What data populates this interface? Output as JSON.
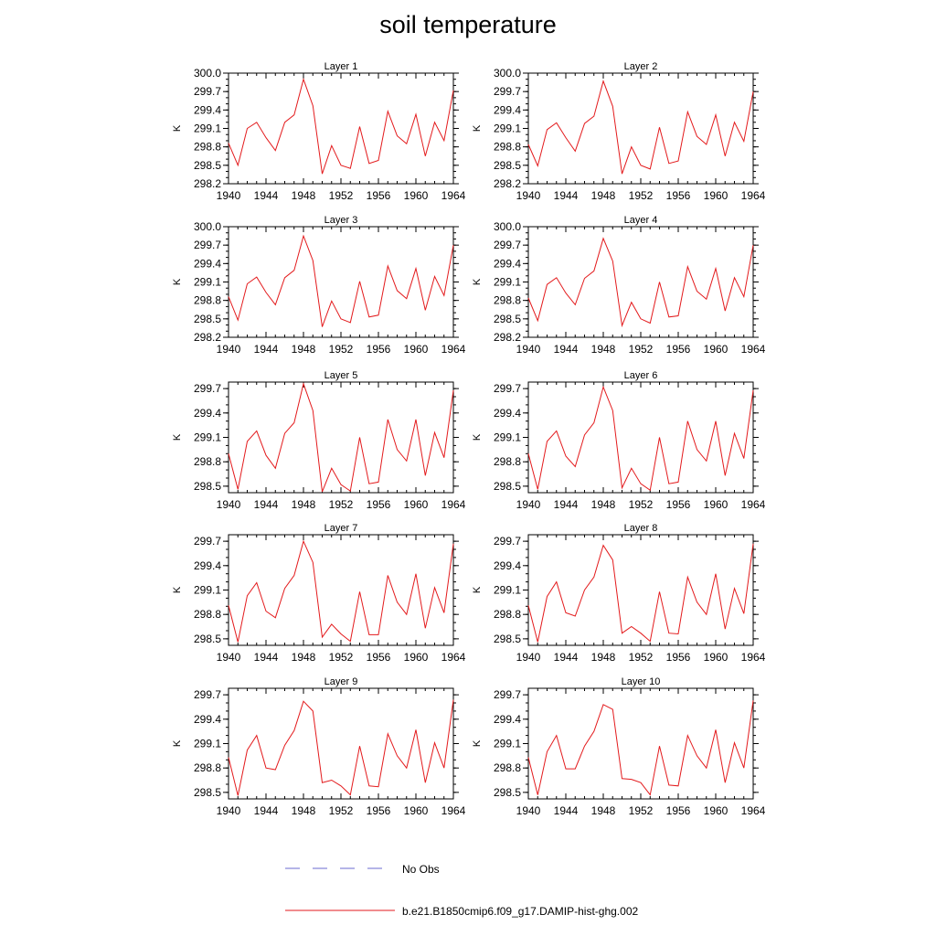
{
  "title": "soil temperature",
  "colors": {
    "obs": "#6b6bd0",
    "model": "#e31a1c"
  },
  "legend": {
    "obs_label": "No Obs",
    "model_label": "b.e21.B1850cmip6.f09_g17.DAMIP-hist-ghg.002"
  },
  "chart_data": [
    {
      "type": "line",
      "title": "Layer 1",
      "ylabel": "K",
      "xlim": [
        1940,
        1964
      ],
      "ylim": [
        298.2,
        300.0
      ],
      "xticks": [
        "1940",
        "1944",
        "1948",
        "1952",
        "1956",
        "1960",
        "1964"
      ],
      "yticks": [
        "298.2",
        "298.5",
        "298.8",
        "299.1",
        "299.4",
        "299.7",
        "300.0"
      ],
      "series": [
        {
          "name": "b.e21.B1850cmip6.f09_g17.DAMIP-hist-ghg.002",
          "x": [
            1940,
            1941,
            1942,
            1943,
            1944,
            1945,
            1946,
            1947,
            1948,
            1949,
            1950,
            1951,
            1952,
            1953,
            1954,
            1955,
            1956,
            1957,
            1958,
            1959,
            1960,
            1961,
            1962,
            1963,
            1964
          ],
          "values": [
            298.86,
            298.5,
            299.1,
            299.2,
            298.95,
            298.74,
            299.2,
            299.32,
            299.9,
            299.47,
            298.36,
            298.82,
            298.5,
            298.45,
            299.13,
            298.53,
            298.58,
            299.38,
            298.98,
            298.85,
            299.33,
            298.65,
            299.2,
            298.9,
            299.72
          ]
        }
      ]
    },
    {
      "type": "line",
      "title": "Layer 2",
      "ylabel": "K",
      "xlim": [
        1940,
        1964
      ],
      "ylim": [
        298.2,
        300.0
      ],
      "xticks": [
        "1940",
        "1944",
        "1948",
        "1952",
        "1956",
        "1960",
        "1964"
      ],
      "yticks": [
        "298.2",
        "298.5",
        "298.8",
        "299.1",
        "299.4",
        "299.7",
        "300.0"
      ],
      "series": [
        {
          "name": "b.e21.B1850cmip6.f09_g17.DAMIP-hist-ghg.002",
          "x": [
            1940,
            1941,
            1942,
            1943,
            1944,
            1945,
            1946,
            1947,
            1948,
            1949,
            1950,
            1951,
            1952,
            1953,
            1954,
            1955,
            1956,
            1957,
            1958,
            1959,
            1960,
            1961,
            1962,
            1963,
            1964
          ],
          "values": [
            298.84,
            298.49,
            299.08,
            299.19,
            298.95,
            298.73,
            299.18,
            299.3,
            299.87,
            299.46,
            298.36,
            298.8,
            298.5,
            298.44,
            299.12,
            298.53,
            298.57,
            299.37,
            298.97,
            298.84,
            299.32,
            298.65,
            299.2,
            298.89,
            299.7
          ]
        }
      ]
    },
    {
      "type": "line",
      "title": "Layer 3",
      "ylabel": "K",
      "xlim": [
        1940,
        1964
      ],
      "ylim": [
        298.2,
        300.0
      ],
      "xticks": [
        "1940",
        "1944",
        "1948",
        "1952",
        "1956",
        "1960",
        "1964"
      ],
      "yticks": [
        "298.2",
        "298.5",
        "298.8",
        "299.1",
        "299.4",
        "299.7",
        "300.0"
      ],
      "series": [
        {
          "name": "b.e21.B1850cmip6.f09_g17.DAMIP-hist-ghg.002",
          "x": [
            1940,
            1941,
            1942,
            1943,
            1944,
            1945,
            1946,
            1947,
            1948,
            1949,
            1950,
            1951,
            1952,
            1953,
            1954,
            1955,
            1956,
            1957,
            1958,
            1959,
            1960,
            1961,
            1962,
            1963,
            1964
          ],
          "values": [
            298.86,
            298.48,
            299.07,
            299.18,
            298.93,
            298.73,
            299.17,
            299.29,
            299.85,
            299.45,
            298.37,
            298.79,
            298.5,
            298.44,
            299.11,
            298.53,
            298.56,
            299.36,
            298.96,
            298.83,
            299.32,
            298.64,
            299.19,
            298.88,
            299.7
          ]
        }
      ]
    },
    {
      "type": "line",
      "title": "Layer 4",
      "ylabel": "K",
      "xlim": [
        1940,
        1964
      ],
      "ylim": [
        298.2,
        300.0
      ],
      "xticks": [
        "1940",
        "1944",
        "1948",
        "1952",
        "1956",
        "1960",
        "1964"
      ],
      "yticks": [
        "298.2",
        "298.5",
        "298.8",
        "299.1",
        "299.4",
        "299.7",
        "300.0"
      ],
      "series": [
        {
          "name": "b.e21.B1850cmip6.f09_g17.DAMIP-hist-ghg.002",
          "x": [
            1940,
            1941,
            1942,
            1943,
            1944,
            1945,
            1946,
            1947,
            1948,
            1949,
            1950,
            1951,
            1952,
            1953,
            1954,
            1955,
            1956,
            1957,
            1958,
            1959,
            1960,
            1961,
            1962,
            1963,
            1964
          ],
          "values": [
            298.84,
            298.47,
            299.06,
            299.17,
            298.92,
            298.73,
            299.16,
            299.28,
            299.81,
            299.44,
            298.39,
            298.77,
            298.5,
            298.43,
            299.1,
            298.53,
            298.55,
            299.35,
            298.95,
            298.82,
            299.32,
            298.63,
            299.17,
            298.86,
            299.7
          ]
        }
      ]
    },
    {
      "type": "line",
      "title": "Layer 5",
      "ylabel": "K",
      "xlim": [
        1940,
        1964
      ],
      "ylim": [
        298.42,
        299.78
      ],
      "xticks": [
        "1940",
        "1944",
        "1948",
        "1952",
        "1956",
        "1960",
        "1964"
      ],
      "yticks": [
        "298.5",
        "298.8",
        "299.1",
        "299.4",
        "299.7"
      ],
      "series": [
        {
          "name": "b.e21.B1850cmip6.f09_g17.DAMIP-hist-ghg.002",
          "x": [
            1940,
            1941,
            1942,
            1943,
            1944,
            1945,
            1946,
            1947,
            1948,
            1949,
            1950,
            1951,
            1952,
            1953,
            1954,
            1955,
            1956,
            1957,
            1958,
            1959,
            1960,
            1961,
            1962,
            1963,
            1964
          ],
          "values": [
            298.9,
            298.46,
            299.05,
            299.18,
            298.88,
            298.72,
            299.15,
            299.28,
            299.76,
            299.43,
            298.43,
            298.72,
            298.52,
            298.44,
            299.1,
            298.53,
            298.55,
            299.32,
            298.95,
            298.81,
            299.32,
            298.63,
            299.16,
            298.85,
            299.68
          ]
        }
      ]
    },
    {
      "type": "line",
      "title": "Layer 6",
      "ylabel": "K",
      "xlim": [
        1940,
        1964
      ],
      "ylim": [
        298.42,
        299.78
      ],
      "xticks": [
        "1940",
        "1944",
        "1948",
        "1952",
        "1956",
        "1960",
        "1964"
      ],
      "yticks": [
        "298.5",
        "298.8",
        "299.1",
        "299.4",
        "299.7"
      ],
      "series": [
        {
          "name": "b.e21.B1850cmip6.f09_g17.DAMIP-hist-ghg.002",
          "x": [
            1940,
            1941,
            1942,
            1943,
            1944,
            1945,
            1946,
            1947,
            1948,
            1949,
            1950,
            1951,
            1952,
            1953,
            1954,
            1955,
            1956,
            1957,
            1958,
            1959,
            1960,
            1961,
            1962,
            1963,
            1964
          ],
          "values": [
            298.9,
            298.46,
            299.05,
            299.18,
            298.87,
            298.74,
            299.13,
            299.28,
            299.72,
            299.43,
            298.48,
            298.72,
            298.53,
            298.45,
            299.1,
            298.53,
            298.55,
            299.3,
            298.95,
            298.81,
            299.3,
            298.63,
            299.15,
            298.84,
            299.68
          ]
        }
      ]
    },
    {
      "type": "line",
      "title": "Layer 7",
      "ylabel": "K",
      "xlim": [
        1940,
        1964
      ],
      "ylim": [
        298.42,
        299.78
      ],
      "xticks": [
        "1940",
        "1944",
        "1948",
        "1952",
        "1956",
        "1960",
        "1964"
      ],
      "yticks": [
        "298.5",
        "298.8",
        "299.1",
        "299.4",
        "299.7"
      ],
      "series": [
        {
          "name": "b.e21.B1850cmip6.f09_g17.DAMIP-hist-ghg.002",
          "x": [
            1940,
            1941,
            1942,
            1943,
            1944,
            1945,
            1946,
            1947,
            1948,
            1949,
            1950,
            1951,
            1952,
            1953,
            1954,
            1955,
            1956,
            1957,
            1958,
            1959,
            1960,
            1961,
            1962,
            1963,
            1964
          ],
          "values": [
            298.91,
            298.46,
            299.03,
            299.19,
            298.84,
            298.76,
            299.12,
            299.28,
            299.7,
            299.44,
            298.52,
            298.68,
            298.56,
            298.47,
            299.08,
            298.55,
            298.55,
            299.28,
            298.95,
            298.8,
            299.3,
            298.63,
            299.13,
            298.82,
            299.67
          ]
        }
      ]
    },
    {
      "type": "line",
      "title": "Layer 8",
      "ylabel": "K",
      "xlim": [
        1940,
        1964
      ],
      "ylim": [
        298.42,
        299.78
      ],
      "xticks": [
        "1940",
        "1944",
        "1948",
        "1952",
        "1956",
        "1960",
        "1964"
      ],
      "yticks": [
        "298.5",
        "298.8",
        "299.1",
        "299.4",
        "299.7"
      ],
      "series": [
        {
          "name": "b.e21.B1850cmip6.f09_g17.DAMIP-hist-ghg.002",
          "x": [
            1940,
            1941,
            1942,
            1943,
            1944,
            1945,
            1946,
            1947,
            1948,
            1949,
            1950,
            1951,
            1952,
            1953,
            1954,
            1955,
            1956,
            1957,
            1958,
            1959,
            1960,
            1961,
            1962,
            1963,
            1964
          ],
          "values": [
            298.91,
            298.46,
            299.02,
            299.2,
            298.82,
            298.78,
            299.1,
            299.26,
            299.65,
            299.47,
            298.57,
            298.65,
            298.57,
            298.47,
            299.08,
            298.57,
            298.56,
            299.26,
            298.95,
            298.8,
            299.3,
            298.62,
            299.12,
            298.81,
            299.67
          ]
        }
      ]
    },
    {
      "type": "line",
      "title": "Layer 9",
      "ylabel": "K",
      "xlim": [
        1940,
        1964
      ],
      "ylim": [
        298.42,
        299.78
      ],
      "xticks": [
        "1940",
        "1944",
        "1948",
        "1952",
        "1956",
        "1960",
        "1964"
      ],
      "yticks": [
        "298.5",
        "298.8",
        "299.1",
        "299.4",
        "299.7"
      ],
      "series": [
        {
          "name": "b.e21.B1850cmip6.f09_g17.DAMIP-hist-ghg.002",
          "x": [
            1940,
            1941,
            1942,
            1943,
            1944,
            1945,
            1946,
            1947,
            1948,
            1949,
            1950,
            1951,
            1952,
            1953,
            1954,
            1955,
            1956,
            1957,
            1958,
            1959,
            1960,
            1961,
            1962,
            1963,
            1964
          ],
          "values": [
            298.93,
            298.46,
            299.02,
            299.2,
            298.8,
            298.78,
            299.08,
            299.26,
            299.62,
            299.5,
            298.62,
            298.65,
            298.58,
            298.47,
            299.07,
            298.58,
            298.57,
            299.22,
            298.95,
            298.8,
            299.27,
            298.62,
            299.11,
            298.8,
            299.64
          ]
        }
      ]
    },
    {
      "type": "line",
      "title": "Layer 10",
      "ylabel": "K",
      "xlim": [
        1940,
        1964
      ],
      "ylim": [
        298.42,
        299.78
      ],
      "xticks": [
        "1940",
        "1944",
        "1948",
        "1952",
        "1956",
        "1960",
        "1964"
      ],
      "yticks": [
        "298.5",
        "298.8",
        "299.1",
        "299.4",
        "299.7"
      ],
      "series": [
        {
          "name": "b.e21.B1850cmip6.f09_g17.DAMIP-hist-ghg.002",
          "x": [
            1940,
            1941,
            1942,
            1943,
            1944,
            1945,
            1946,
            1947,
            1948,
            1949,
            1950,
            1951,
            1952,
            1953,
            1954,
            1955,
            1956,
            1957,
            1958,
            1959,
            1960,
            1961,
            1962,
            1963,
            1964
          ],
          "values": [
            298.93,
            298.47,
            299.0,
            299.2,
            298.79,
            298.79,
            299.07,
            299.25,
            299.58,
            299.52,
            298.67,
            298.66,
            298.62,
            298.47,
            299.07,
            298.59,
            298.58,
            299.2,
            298.95,
            298.8,
            299.27,
            298.62,
            299.11,
            298.8,
            299.63
          ]
        }
      ]
    }
  ]
}
